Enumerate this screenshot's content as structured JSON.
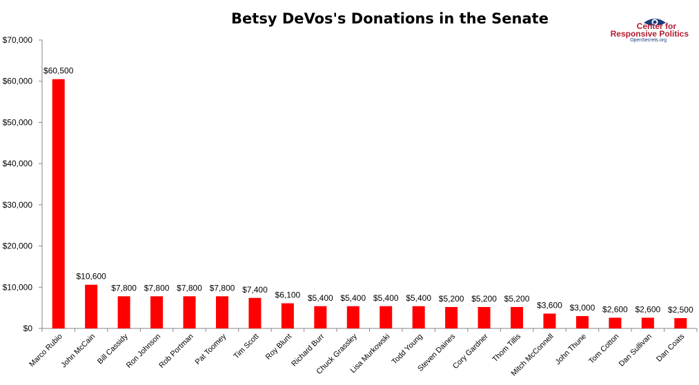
{
  "logo": {
    "line1": "Center for",
    "line2": "Responsive Politics",
    "line3": "OpenSecrets.org"
  },
  "colors": {
    "bar": "#ff0000",
    "logo_red": "#b01c2e",
    "logo_blue": "#1a3a7a"
  },
  "chart_data": {
    "type": "bar",
    "title": "Betsy DeVos's Donations in the Senate",
    "xlabel": "",
    "ylabel": "",
    "ylim": [
      0,
      70000
    ],
    "yticks": [
      0,
      10000,
      20000,
      30000,
      40000,
      50000,
      60000,
      70000
    ],
    "ytick_labels": [
      "$0",
      "$10,000",
      "$20,000",
      "$30,000",
      "$40,000",
      "$50,000",
      "$60,000",
      "$70,000"
    ],
    "grid": false,
    "categories": [
      "Marco Rubio",
      "John McCain",
      "Bill Cassidy",
      "Ron Johnson",
      "Rob Portman",
      "Pat Toomey",
      "Tim Scott",
      "Roy Blunt",
      "Richard Burr",
      "Chuck Grassley",
      "Lisa Murkowski",
      "Todd Young",
      "Steven Daines",
      "Cory Gardner",
      "Thom Tillis",
      "Mitch McConnell",
      "John Thune",
      "Tom Cotton",
      "Dan Sullivan",
      "Dan Coats"
    ],
    "values": [
      60500,
      10600,
      7800,
      7800,
      7800,
      7800,
      7400,
      6100,
      5400,
      5400,
      5400,
      5400,
      5200,
      5200,
      5200,
      3600,
      3000,
      2600,
      2600,
      2500
    ],
    "data_labels": [
      "$60,500",
      "$10,600",
      "$7,800",
      "$7,800",
      "$7,800",
      "$7,800",
      "$7,400",
      "$6,100",
      "$5,400",
      "$5,400",
      "$5,400",
      "$5,400",
      "$5,200",
      "$5,200",
      "$5,200",
      "$3,600",
      "$3,000",
      "$2,600",
      "$2,600",
      "$2,500"
    ]
  }
}
